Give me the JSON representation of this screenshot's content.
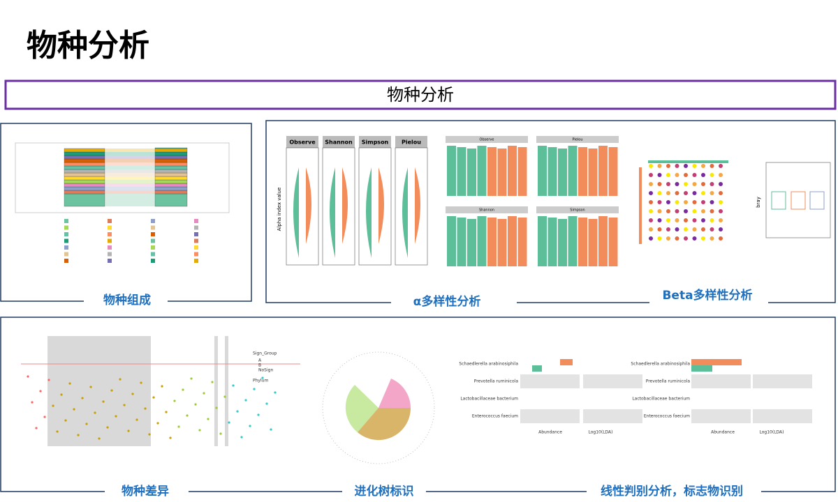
{
  "header": {
    "title": "物种分析"
  },
  "banner": {
    "title": "物种分析"
  },
  "panels": [
    {
      "caption": "物种组成"
    },
    {
      "caption": "α多样性分析"
    },
    {
      "caption": "Beta多样性分析"
    },
    {
      "caption": "物种差异"
    },
    {
      "caption": "进化树标识"
    },
    {
      "caption": "线性判别分析，标志物识别"
    }
  ],
  "figures": {
    "alpha_panels": [
      "Observe",
      "Shannon",
      "Simpson",
      "Pielou"
    ],
    "alpha_axis": "Alpha index value",
    "bar_panels": [
      "Observe",
      "Pielou",
      "Shannon",
      "Simpson"
    ],
    "beta_axis": "bray",
    "diff_legend": {
      "title": "Sign_Group",
      "items": [
        "A",
        "B",
        "NoSign"
      ]
    },
    "phylum_title": "Phylum",
    "lda_species": [
      "Schaedlerella arabinosiphila",
      "Prevotella ruminicola",
      "Lactobacillaceae bacterium",
      "Enterococcus faecium"
    ],
    "lda_axes": [
      "Abundance",
      "Log10(LDA)"
    ]
  }
}
